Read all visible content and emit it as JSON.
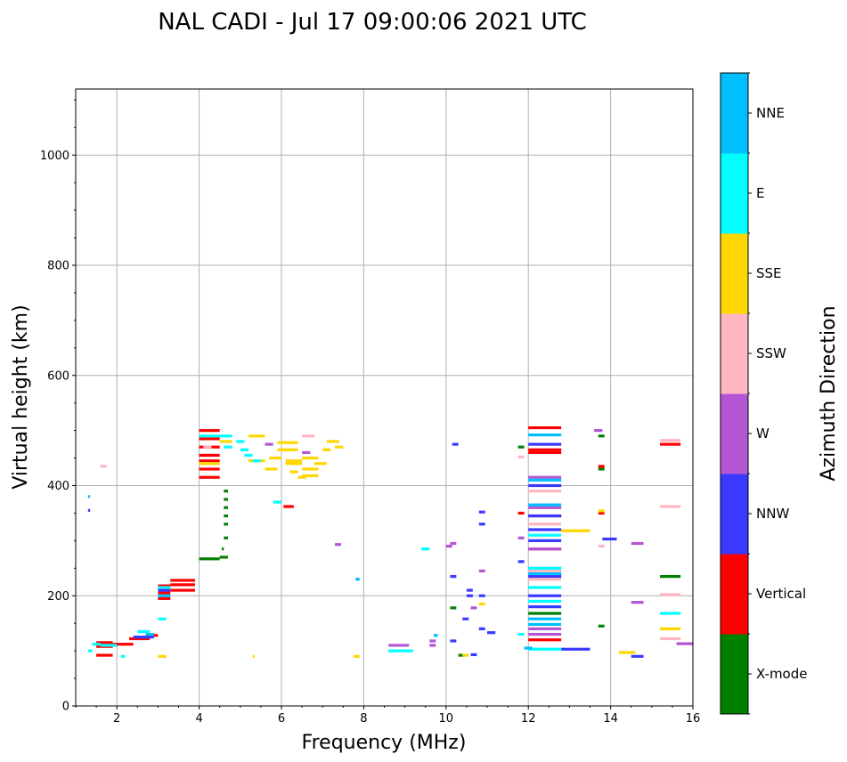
{
  "chart_data": {
    "type": "scatter",
    "title": "NAL CADI - Jul 17 09:00:06 2021 UTC",
    "xlabel": "Frequency (MHz)",
    "ylabel": "Virtual height (km)",
    "xlim": [
      1.0,
      16.0
    ],
    "ylim": [
      0,
      1120
    ],
    "xticks": [
      2,
      4,
      6,
      8,
      10,
      12,
      14,
      16
    ],
    "yticks": [
      0,
      200,
      400,
      600,
      800,
      1000
    ],
    "grid": true,
    "colorbar": {
      "label": "Azimuth Direction",
      "categories": [
        {
          "name": "X-mode",
          "color": "#008000"
        },
        {
          "name": "Vertical",
          "color": "#ff0000"
        },
        {
          "name": "NNW",
          "color": "#3a3aff"
        },
        {
          "name": "W",
          "color": "#b455d4"
        },
        {
          "name": "SSW",
          "color": "#ffb6c1"
        },
        {
          "name": "SSE",
          "color": "#ffd700"
        },
        {
          "name": "E",
          "color": "#00ffff"
        },
        {
          "name": "NNE",
          "color": "#00bfff"
        }
      ]
    },
    "series": [
      {
        "name": "X-mode",
        "points": [
          [
            4.0,
            4.5,
            267
          ],
          [
            4.5,
            4.7,
            270
          ],
          [
            4.55,
            4.6,
            285
          ],
          [
            4.6,
            4.7,
            305
          ],
          [
            4.6,
            4.7,
            330
          ],
          [
            4.6,
            4.7,
            345
          ],
          [
            4.6,
            4.7,
            360
          ],
          [
            4.6,
            4.7,
            375
          ],
          [
            4.6,
            4.7,
            390
          ],
          [
            10.1,
            10.25,
            178
          ],
          [
            10.3,
            10.45,
            92
          ],
          [
            11.75,
            11.9,
            470
          ],
          [
            12.0,
            12.8,
            168
          ],
          [
            13.7,
            13.85,
            430
          ],
          [
            13.7,
            13.85,
            490
          ],
          [
            13.7,
            13.85,
            145
          ],
          [
            15.2,
            15.7,
            235
          ]
        ]
      },
      {
        "name": "Vertical",
        "points": [
          [
            1.5,
            1.9,
            108
          ],
          [
            1.5,
            1.9,
            115
          ],
          [
            1.5,
            1.9,
            92
          ],
          [
            1.9,
            2.4,
            112
          ],
          [
            2.3,
            2.8,
            122
          ],
          [
            2.7,
            3.0,
            128
          ],
          [
            3.0,
            3.3,
            195
          ],
          [
            3.0,
            3.3,
            205
          ],
          [
            3.0,
            3.3,
            218
          ],
          [
            3.3,
            3.9,
            210
          ],
          [
            3.3,
            3.9,
            220
          ],
          [
            3.3,
            3.9,
            228
          ],
          [
            4.0,
            4.5,
            500
          ],
          [
            4.0,
            4.5,
            485
          ],
          [
            4.0,
            4.5,
            470
          ],
          [
            4.0,
            4.5,
            455
          ],
          [
            4.0,
            4.5,
            445
          ],
          [
            4.0,
            4.5,
            430
          ],
          [
            4.0,
            4.5,
            415
          ],
          [
            6.05,
            6.3,
            362
          ],
          [
            11.75,
            11.9,
            350
          ],
          [
            12.0,
            12.8,
            505
          ],
          [
            12.0,
            12.8,
            465
          ],
          [
            12.0,
            12.8,
            460
          ],
          [
            12.0,
            12.8,
            345
          ],
          [
            12.0,
            12.8,
            285
          ],
          [
            12.0,
            12.8,
            120
          ],
          [
            13.7,
            13.85,
            435
          ],
          [
            13.7,
            13.85,
            350
          ],
          [
            15.2,
            15.7,
            475
          ]
        ]
      },
      {
        "name": "NNW",
        "points": [
          [
            1.3,
            1.35,
            355
          ],
          [
            2.4,
            2.9,
            125
          ],
          [
            3.0,
            3.3,
            210
          ],
          [
            10.15,
            10.3,
            475
          ],
          [
            10.8,
            10.95,
            352
          ],
          [
            10.8,
            10.95,
            330
          ],
          [
            10.4,
            10.55,
            158
          ],
          [
            10.5,
            10.65,
            200
          ],
          [
            10.5,
            10.65,
            210
          ],
          [
            10.8,
            10.95,
            140
          ],
          [
            10.8,
            10.95,
            200
          ],
          [
            11.0,
            11.2,
            133
          ],
          [
            11.75,
            11.9,
            262
          ],
          [
            12.0,
            12.8,
            475
          ],
          [
            12.0,
            12.8,
            400
          ],
          [
            12.0,
            12.8,
            345
          ],
          [
            12.0,
            12.8,
            320
          ],
          [
            12.0,
            12.8,
            300
          ],
          [
            12.0,
            12.8,
            235
          ],
          [
            12.0,
            12.8,
            200
          ],
          [
            12.0,
            12.8,
            180
          ],
          [
            12.8,
            13.5,
            103
          ],
          [
            10.1,
            10.25,
            235
          ],
          [
            10.1,
            10.25,
            118
          ],
          [
            10.6,
            10.75,
            93
          ],
          [
            13.8,
            14.15,
            303
          ],
          [
            14.5,
            14.8,
            90
          ]
        ]
      },
      {
        "name": "W",
        "points": [
          [
            8.6,
            9.1,
            110
          ],
          [
            9.6,
            9.75,
            118
          ],
          [
            9.6,
            9.75,
            110
          ],
          [
            10.1,
            10.25,
            295
          ],
          [
            10.0,
            10.15,
            290
          ],
          [
            10.6,
            10.75,
            178
          ],
          [
            10.8,
            10.95,
            245
          ],
          [
            11.75,
            11.9,
            305
          ],
          [
            12.0,
            12.8,
            415
          ],
          [
            12.0,
            12.8,
            360
          ],
          [
            12.0,
            12.8,
            285
          ],
          [
            12.0,
            12.8,
            140
          ],
          [
            12.0,
            12.8,
            130
          ],
          [
            13.6,
            13.8,
            500
          ],
          [
            14.5,
            14.8,
            295
          ],
          [
            14.5,
            14.8,
            188
          ],
          [
            15.6,
            16.0,
            113
          ],
          [
            6.5,
            6.7,
            460
          ],
          [
            7.3,
            7.45,
            293
          ],
          [
            5.6,
            5.8,
            475
          ]
        ]
      },
      {
        "name": "SSW",
        "points": [
          [
            1.6,
            1.75,
            435
          ],
          [
            4.1,
            4.3,
            470
          ],
          [
            6.5,
            6.8,
            490
          ],
          [
            11.75,
            11.9,
            452
          ],
          [
            12.0,
            12.8,
            390
          ],
          [
            12.0,
            12.8,
            330
          ],
          [
            12.0,
            12.8,
            250
          ],
          [
            12.0,
            12.8,
            245
          ],
          [
            12.0,
            12.8,
            230
          ],
          [
            13.7,
            13.85,
            290
          ],
          [
            15.2,
            15.7,
            482
          ],
          [
            15.2,
            15.7,
            362
          ],
          [
            15.2,
            15.7,
            202
          ],
          [
            15.2,
            15.7,
            122
          ]
        ]
      },
      {
        "name": "SSE",
        "points": [
          [
            4.0,
            4.5,
            440
          ],
          [
            4.5,
            4.8,
            480
          ],
          [
            5.2,
            5.6,
            490
          ],
          [
            5.2,
            5.6,
            445
          ],
          [
            5.6,
            5.9,
            430
          ],
          [
            5.7,
            6.0,
            450
          ],
          [
            5.9,
            6.4,
            478
          ],
          [
            5.9,
            6.4,
            465
          ],
          [
            6.1,
            6.5,
            445
          ],
          [
            6.1,
            6.5,
            440
          ],
          [
            6.2,
            6.4,
            425
          ],
          [
            6.4,
            6.6,
            415
          ],
          [
            6.5,
            6.9,
            450
          ],
          [
            6.5,
            6.9,
            430
          ],
          [
            6.5,
            6.9,
            418
          ],
          [
            6.8,
            7.1,
            440
          ],
          [
            7.0,
            7.2,
            465
          ],
          [
            7.1,
            7.4,
            480
          ],
          [
            7.3,
            7.5,
            470
          ],
          [
            3.0,
            3.2,
            90
          ],
          [
            5.3,
            5.35,
            90
          ],
          [
            7.75,
            7.9,
            90
          ],
          [
            10.4,
            10.55,
            92
          ],
          [
            10.8,
            10.95,
            185
          ],
          [
            12.8,
            13.5,
            318
          ],
          [
            14.2,
            14.6,
            97
          ],
          [
            15.2,
            15.7,
            140
          ],
          [
            13.7,
            13.85,
            354
          ]
        ]
      },
      {
        "name": "E",
        "points": [
          [
            1.3,
            1.4,
            100
          ],
          [
            1.4,
            1.6,
            112
          ],
          [
            1.6,
            2.0,
            110
          ],
          [
            2.5,
            2.8,
            135
          ],
          [
            3.0,
            3.2,
            158
          ],
          [
            3.0,
            3.3,
            215
          ],
          [
            4.0,
            4.5,
            490
          ],
          [
            4.5,
            4.8,
            490
          ],
          [
            4.6,
            4.8,
            470
          ],
          [
            4.9,
            5.1,
            480
          ],
          [
            5.0,
            5.2,
            465
          ],
          [
            5.1,
            5.3,
            455
          ],
          [
            5.3,
            5.5,
            445
          ],
          [
            5.8,
            6.0,
            370
          ],
          [
            8.6,
            9.2,
            100
          ],
          [
            9.4,
            9.6,
            285
          ],
          [
            11.75,
            11.9,
            130
          ],
          [
            12.0,
            12.8,
            310
          ],
          [
            12.0,
            12.8,
            250
          ],
          [
            12.0,
            12.8,
            215
          ],
          [
            12.0,
            12.8,
            190
          ],
          [
            12.0,
            12.8,
            103
          ],
          [
            15.2,
            15.7,
            168
          ],
          [
            2.1,
            2.2,
            90
          ]
        ]
      },
      {
        "name": "NNE",
        "points": [
          [
            1.3,
            1.35,
            380
          ],
          [
            2.7,
            2.9,
            130
          ],
          [
            3.0,
            3.3,
            200
          ],
          [
            7.8,
            7.9,
            230
          ],
          [
            12.0,
            12.8,
            492
          ],
          [
            12.0,
            12.8,
            410
          ],
          [
            12.0,
            12.8,
            365
          ],
          [
            12.0,
            12.8,
            240
          ],
          [
            12.0,
            12.8,
            158
          ],
          [
            12.0,
            12.8,
            148
          ],
          [
            11.9,
            12.1,
            105
          ],
          [
            9.7,
            9.8,
            128
          ]
        ]
      }
    ]
  }
}
